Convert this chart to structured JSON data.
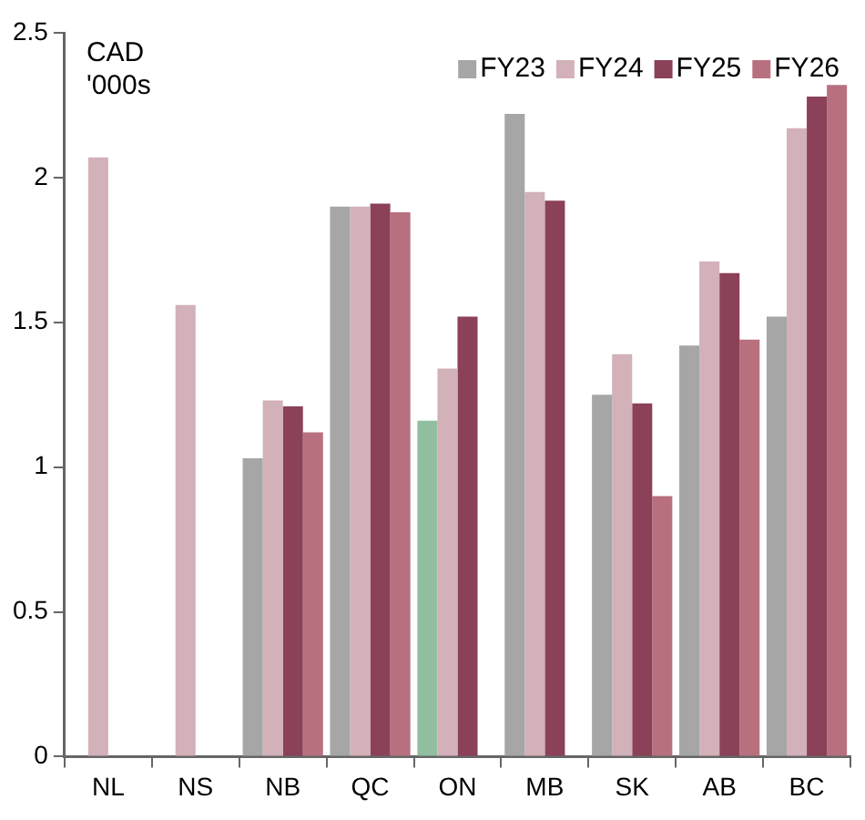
{
  "chart_data": {
    "type": "bar",
    "categories": [
      "NL",
      "NS",
      "NB",
      "QC",
      "ON",
      "MB",
      "SK",
      "AB",
      "BC"
    ],
    "series": [
      {
        "name": "FY23",
        "color": "#a6a6a6",
        "colors": [
          "#a6a6a6",
          "#a6a6a6",
          "#a6a6a6",
          "#a6a6a6",
          "#8fbf9f",
          "#a6a6a6",
          "#a6a6a6",
          "#a6a6a6",
          "#a6a6a6"
        ],
        "values": [
          null,
          null,
          1.03,
          1.9,
          1.16,
          2.22,
          1.25,
          1.42,
          1.52
        ]
      },
      {
        "name": "FY24",
        "color": "#d2b1b9",
        "values": [
          2.07,
          1.56,
          1.23,
          1.9,
          1.34,
          1.95,
          1.39,
          1.71,
          2.17
        ]
      },
      {
        "name": "FY25",
        "color": "#8b4157",
        "values": [
          null,
          null,
          1.21,
          1.91,
          1.52,
          1.92,
          1.22,
          1.67,
          2.28
        ]
      },
      {
        "name": "FY26",
        "color": "#b8707f",
        "values": [
          null,
          null,
          1.12,
          1.88,
          null,
          null,
          0.9,
          1.44,
          2.32
        ]
      }
    ],
    "ylim": [
      0,
      2.5
    ],
    "yticks": [
      0,
      0.5,
      1,
      1.5,
      2,
      2.5
    ],
    "grid": false,
    "legend": "top right",
    "annotations": [
      "CAD '000s"
    ]
  }
}
